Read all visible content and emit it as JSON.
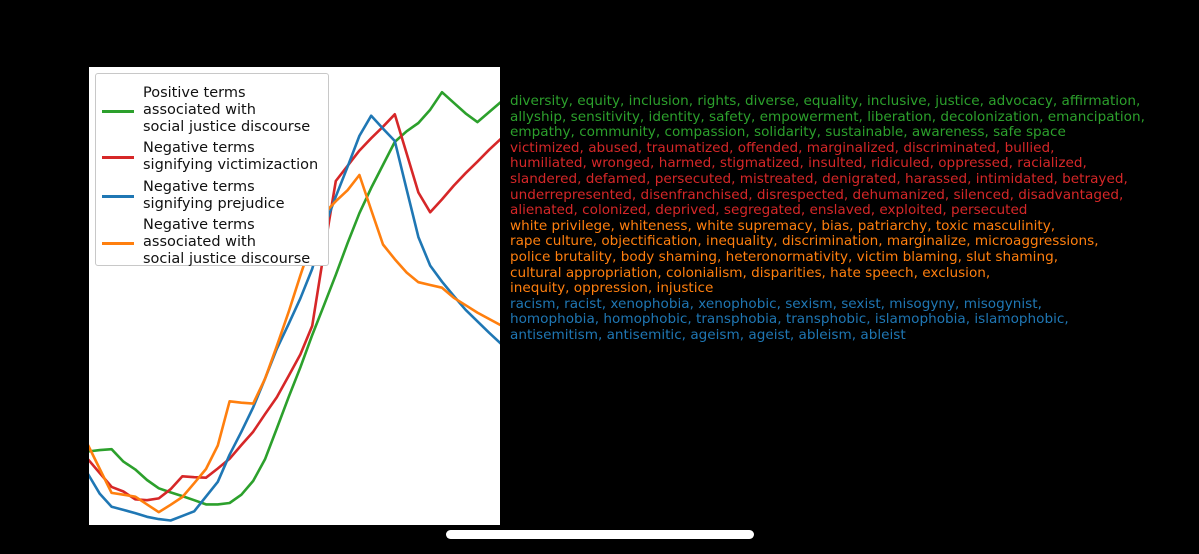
{
  "colors": {
    "green": "#2ca02c",
    "red": "#d62728",
    "blue": "#1f77b4",
    "orange": "#ff7f0e"
  },
  "legend": [
    {
      "label": "Positive terms\nassociated with\nsocial justice discourse",
      "color": "#2ca02c"
    },
    {
      "label": "Negative terms\nsignifying victimizaction",
      "color": "#d62728"
    },
    {
      "label": "Negative terms\nsignifying prejudice",
      "color": "#1f77b4"
    },
    {
      "label": "Negative terms\nassociated with\nsocial justice discourse",
      "color": "#ff7f0e"
    }
  ],
  "chart_data": {
    "type": "line",
    "title": "",
    "xlabel": "",
    "ylabel": "",
    "x": [
      0,
      1,
      2,
      3,
      4,
      5,
      6,
      7,
      8,
      9,
      10,
      11,
      12,
      13,
      14,
      15,
      16,
      17,
      18,
      19,
      20,
      21,
      22,
      23,
      24,
      25,
      26,
      27,
      28,
      29,
      30,
      31,
      32,
      33,
      34,
      35
    ],
    "xlim": [
      0,
      35
    ],
    "ylim": [
      0,
      100
    ],
    "grid": false,
    "legend_position": "top-left",
    "series": [
      {
        "name": "Positive terms associated with social justice discourse",
        "color": "#2ca02c",
        "values": [
          16.2,
          16.5,
          16.7,
          14.0,
          12.3,
          10.0,
          8.2,
          7.3,
          6.5,
          5.6,
          4.7,
          4.7,
          5.0,
          6.8,
          9.8,
          14.5,
          21.2,
          28.0,
          34.5,
          41.5,
          48.0,
          54.6,
          61.5,
          68.0,
          73.5,
          78.5,
          83.5,
          85.8,
          87.6,
          90.5,
          94.3,
          92.0,
          89.7,
          87.8,
          90.0,
          92.2
        ]
      },
      {
        "name": "Negative terms signifying victimizaction",
        "color": "#d62728",
        "values": [
          14.5,
          11.5,
          8.5,
          7.5,
          5.8,
          5.6,
          6.0,
          8.0,
          10.8,
          10.6,
          10.5,
          12.5,
          14.6,
          17.6,
          20.5,
          24.3,
          28.0,
          32.6,
          37.3,
          43.5,
          59.6,
          75.0,
          78.3,
          81.6,
          84.3,
          86.8,
          89.5,
          81.0,
          72.5,
          68.2,
          71.0,
          74.0,
          76.7,
          79.2,
          81.8,
          84.2
        ]
      },
      {
        "name": "Negative terms signifying prejudice",
        "color": "#1f77b4",
        "values": [
          11.3,
          7.0,
          4.2,
          3.5,
          2.8,
          2.0,
          1.5,
          1.2,
          2.2,
          3.2,
          6.4,
          9.6,
          15.5,
          20.5,
          25.8,
          32.0,
          38.5,
          43.9,
          49.5,
          55.9,
          64.8,
          71.6,
          78.1,
          84.8,
          89.2,
          86.4,
          83.7,
          73.2,
          62.8,
          56.6,
          53.1,
          50.0,
          47.0,
          44.5,
          42.0,
          39.6
        ]
      },
      {
        "name": "Negative terms associated with social justice discourse",
        "color": "#ff7f0e",
        "values": [
          17.6,
          12.4,
          7.2,
          6.8,
          6.4,
          4.7,
          3.0,
          4.6,
          6.3,
          9.3,
          12.4,
          17.5,
          27.1,
          26.8,
          26.6,
          32.0,
          39.1,
          46.5,
          54.5,
          62.1,
          67.9,
          70.6,
          73.0,
          76.3,
          68.7,
          61.2,
          58.0,
          55.1,
          53.0,
          52.4,
          51.8,
          49.6,
          48.0,
          46.4,
          45.0,
          43.6
        ]
      }
    ]
  },
  "terms": [
    {
      "color": "#2ca02c",
      "lines": [
        "diversity, equity, inclusion, rights, diverse, equality, inclusive, justice, advocacy, affirmation,",
        "allyship, sensitivity, identity, safety, empowerment, liberation, decolonization, emancipation,",
        "empathy, community, compassion, solidarity, sustainable, awareness, safe space"
      ]
    },
    {
      "color": "#d62728",
      "lines": [
        "victimized, abused, traumatized, offended, marginalized, discriminated, bullied,",
        "humiliated, wronged, harmed, stigmatized, insulted, ridiculed, oppressed, racialized,",
        "slandered, defamed, persecuted, mistreated, denigrated, harassed, intimidated, betrayed,",
        "underrepresented, disenfranchised, disrespected, dehumanized, silenced, disadvantaged,",
        "alienated, colonized, deprived, segregated, enslaved, exploited, persecuted"
      ]
    },
    {
      "color": "#ff7f0e",
      "lines": [
        "white privilege, whiteness, white supremacy, bias, patriarchy, toxic masculinity,",
        "rape culture, objectification, inequality, discrimination, marginalize, microaggressions,",
        "police brutality, body shaming, heteronormativity, victim blaming, slut shaming,",
        "cultural appropriation, colonialism, disparities, hate speech, exclusion,",
        "inequity, oppression, injustice"
      ]
    },
    {
      "color": "#1f77b4",
      "lines": [
        "racism, racist, xenophobia, xenophobic, sexism, sexist, misogyny, misogynist,",
        "homophobia, homophobic, transphobia, transphobic, islamophobia, islamophobic,",
        "antisemitism, antisemitic, ageism, ageist, ableism, ableist"
      ]
    }
  ]
}
